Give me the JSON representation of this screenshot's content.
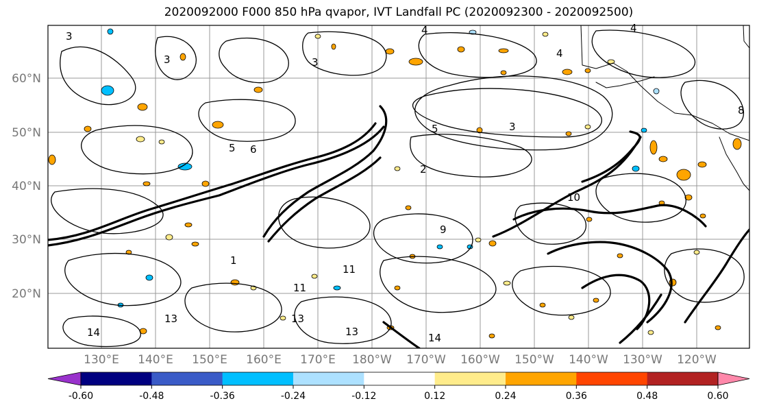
{
  "title": "2020092000 F000 850 hPa qvapor, IVT Landfall PC (2020092300 - 2020092500)",
  "map": {
    "lat_ticks": [
      "60°N",
      "50°N",
      "40°N",
      "30°N",
      "20°N"
    ],
    "lon_ticks": [
      "130°E",
      "140°E",
      "150°E",
      "160°E",
      "170°E",
      "180°W",
      "170°W",
      "160°W",
      "150°W",
      "140°W",
      "130°W",
      "120°W"
    ],
    "contour_labels": [
      "3",
      "3",
      "4",
      "4",
      "3",
      "5",
      "6",
      "5",
      "2",
      "3",
      "9",
      "10",
      "1",
      "11",
      "11",
      "13",
      "13",
      "14",
      "13",
      "14",
      "4",
      "8"
    ]
  },
  "colorbar": {
    "colors": [
      "#9932CC",
      "#000080",
      "#3A5BC7",
      "#00BFFF",
      "#ADE1FF",
      "#FFFFFF",
      "#FFEC8B",
      "#FFA500",
      "#FF4500",
      "#B22222",
      "#FF88AA"
    ],
    "tick_labels": [
      "-0.60",
      "-0.48",
      "-0.36",
      "-0.24",
      "-0.12",
      "0.12",
      "0.24",
      "0.36",
      "0.48",
      "0.60"
    ]
  }
}
